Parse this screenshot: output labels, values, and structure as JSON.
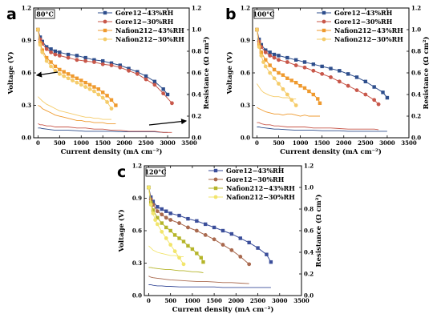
{
  "chart_data": [
    {
      "type": "line",
      "panel_letter": "a",
      "temperature_label": "80°C",
      "xlabel": "Current density (mA cm⁻²)",
      "ylabel": "Voltage (V)",
      "y2label": "Resistance (Ω cm²)",
      "xlim": [
        -100,
        3500
      ],
      "ylim": [
        0,
        1.2
      ],
      "y2lim": [
        0,
        1.2
      ],
      "x_ticks": [
        0,
        500,
        1000,
        1500,
        2000,
        2500,
        3000,
        3500
      ],
      "y_ticks": [
        0.0,
        0.3,
        0.6,
        0.9,
        1.2
      ],
      "y2_ticks": [
        0.0,
        0.2,
        0.4,
        0.6,
        0.8,
        1.0,
        1.2
      ],
      "legend_position": "top-right",
      "annotations": [
        "arrow pointing to left (voltage) axis",
        "arrow pointing to right (resistance) axis"
      ],
      "series": [
        {
          "name": "Gore12−43%RH",
          "color": "#2e4e8c",
          "marker": "square",
          "x": [
            0,
            50,
            100,
            200,
            300,
            400,
            500,
            700,
            900,
            1100,
            1300,
            1500,
            1700,
            1900,
            2100,
            2300,
            2500,
            2700,
            2900,
            3000
          ],
          "y": [
            1.0,
            0.93,
            0.89,
            0.84,
            0.82,
            0.8,
            0.79,
            0.77,
            0.76,
            0.74,
            0.72,
            0.71,
            0.69,
            0.67,
            0.64,
            0.61,
            0.57,
            0.52,
            0.45,
            0.4
          ],
          "resistance": [
            0.09,
            0.09,
            0.085,
            0.08,
            0.075,
            0.07,
            0.07,
            0.07,
            0.065,
            0.06,
            0.06,
            0.06,
            0.06,
            0.055,
            0.055,
            0.055,
            0.055,
            0.055,
            0.05,
            0.05
          ]
        },
        {
          "name": "Gore12−30%RH",
          "color": "#c8574a",
          "marker": "circle",
          "x": [
            0,
            50,
            100,
            200,
            300,
            400,
            500,
            700,
            900,
            1100,
            1300,
            1500,
            1700,
            1900,
            2100,
            2300,
            2500,
            2700,
            2900,
            3100
          ],
          "y": [
            1.0,
            0.91,
            0.87,
            0.82,
            0.79,
            0.77,
            0.76,
            0.74,
            0.72,
            0.71,
            0.7,
            0.68,
            0.67,
            0.65,
            0.62,
            0.59,
            0.54,
            0.49,
            0.41,
            0.32
          ],
          "resistance": [
            0.13,
            0.12,
            0.12,
            0.11,
            0.11,
            0.1,
            0.1,
            0.1,
            0.09,
            0.09,
            0.08,
            0.08,
            0.07,
            0.07,
            0.06,
            0.06,
            0.06,
            0.06,
            0.05,
            0.05
          ]
        },
        {
          "name": "Nafion212−43%RH",
          "color": "#ef9a2e",
          "marker": "square",
          "x": [
            0,
            50,
            100,
            200,
            300,
            400,
            500,
            600,
            700,
            800,
            900,
            1000,
            1100,
            1200,
            1300,
            1400,
            1500,
            1600,
            1700,
            1800
          ],
          "y": [
            1.0,
            0.88,
            0.81,
            0.74,
            0.7,
            0.66,
            0.63,
            0.61,
            0.59,
            0.57,
            0.55,
            0.53,
            0.51,
            0.49,
            0.47,
            0.45,
            0.42,
            0.39,
            0.35,
            0.3
          ],
          "resistance": [
            0.3,
            0.29,
            0.27,
            0.25,
            0.23,
            0.21,
            0.2,
            0.19,
            0.18,
            0.17,
            0.16,
            0.16,
            0.15,
            0.15,
            0.14,
            0.14,
            0.14,
            0.13,
            0.13,
            0.13
          ]
        },
        {
          "name": "Nafion212−30%RH",
          "color": "#f5cc6a",
          "marker": "circle",
          "x": [
            0,
            50,
            100,
            200,
            300,
            400,
            500,
            600,
            700,
            800,
            900,
            1000,
            1100,
            1200,
            1300,
            1400,
            1500,
            1600,
            1700
          ],
          "y": [
            1.0,
            0.86,
            0.79,
            0.71,
            0.66,
            0.62,
            0.59,
            0.57,
            0.55,
            0.53,
            0.51,
            0.49,
            0.47,
            0.45,
            0.43,
            0.4,
            0.37,
            0.33,
            0.27
          ],
          "resistance": [
            0.38,
            0.36,
            0.34,
            0.31,
            0.29,
            0.27,
            0.25,
            0.24,
            0.23,
            0.22,
            0.21,
            0.2,
            0.19,
            0.19,
            0.18,
            0.18,
            0.17,
            0.17,
            0.17
          ]
        }
      ]
    },
    {
      "type": "line",
      "panel_letter": "b",
      "temperature_label": "100°C",
      "xlabel": "Current density (mA cm⁻²)",
      "ylabel": "Voltage (V)",
      "y2label": "Resistance (Ω cm²)",
      "xlim": [
        -100,
        3500
      ],
      "ylim": [
        0,
        1.2
      ],
      "y2lim": [
        0,
        1.2
      ],
      "x_ticks": [
        0,
        500,
        1000,
        1500,
        2000,
        2500,
        3000,
        3500
      ],
      "y_ticks": [
        0.0,
        0.3,
        0.6,
        0.9,
        1.2
      ],
      "y2_ticks": [
        0.0,
        0.2,
        0.4,
        0.6,
        0.8,
        1.0,
        1.2
      ],
      "legend_position": "top-right",
      "series": [
        {
          "name": "Gore12−43%RH",
          "color": "#2e4e8c",
          "marker": "square",
          "x": [
            0,
            50,
            100,
            200,
            300,
            400,
            500,
            700,
            900,
            1100,
            1300,
            1500,
            1700,
            1900,
            2100,
            2300,
            2500,
            2700,
            2900,
            3000
          ],
          "y": [
            1.0,
            0.91,
            0.86,
            0.81,
            0.79,
            0.77,
            0.76,
            0.74,
            0.72,
            0.7,
            0.68,
            0.66,
            0.64,
            0.62,
            0.59,
            0.56,
            0.52,
            0.47,
            0.42,
            0.37
          ],
          "resistance": [
            0.1,
            0.1,
            0.095,
            0.09,
            0.085,
            0.08,
            0.08,
            0.075,
            0.07,
            0.07,
            0.07,
            0.065,
            0.065,
            0.065,
            0.06,
            0.06,
            0.06,
            0.06,
            0.06,
            0.06
          ]
        },
        {
          "name": "Gore12−30%RH",
          "color": "#c8574a",
          "marker": "circle",
          "x": [
            0,
            50,
            100,
            200,
            300,
            400,
            500,
            700,
            900,
            1100,
            1300,
            1500,
            1700,
            1900,
            2100,
            2300,
            2500,
            2700,
            2800
          ],
          "y": [
            1.0,
            0.89,
            0.84,
            0.79,
            0.76,
            0.74,
            0.72,
            0.7,
            0.67,
            0.65,
            0.62,
            0.59,
            0.56,
            0.52,
            0.48,
            0.44,
            0.4,
            0.35,
            0.31
          ],
          "resistance": [
            0.14,
            0.14,
            0.13,
            0.12,
            0.12,
            0.11,
            0.11,
            0.1,
            0.1,
            0.1,
            0.09,
            0.09,
            0.09,
            0.085,
            0.08,
            0.08,
            0.08,
            0.08,
            0.075
          ]
        },
        {
          "name": "Nafion212−43%RH",
          "color": "#ef9a2e",
          "marker": "square",
          "x": [
            0,
            50,
            100,
            200,
            300,
            400,
            500,
            600,
            700,
            800,
            900,
            1000,
            1100,
            1200,
            1300,
            1400,
            1450
          ],
          "y": [
            1.0,
            0.86,
            0.79,
            0.72,
            0.67,
            0.63,
            0.6,
            0.58,
            0.55,
            0.53,
            0.51,
            0.48,
            0.46,
            0.43,
            0.4,
            0.36,
            0.32
          ],
          "resistance": [
            0.28,
            0.27,
            0.26,
            0.24,
            0.23,
            0.22,
            0.22,
            0.21,
            0.22,
            0.22,
            0.21,
            0.2,
            0.21,
            0.2,
            0.2,
            0.2,
            0.2
          ]
        },
        {
          "name": "Nafion212−30%RH",
          "color": "#f5cc6a",
          "marker": "circle",
          "x": [
            0,
            50,
            100,
            150,
            200,
            300,
            400,
            500,
            600,
            700,
            800,
            900
          ],
          "y": [
            1.0,
            0.84,
            0.76,
            0.7,
            0.66,
            0.6,
            0.55,
            0.5,
            0.45,
            0.4,
            0.35,
            0.3
          ],
          "resistance": [
            0.5,
            0.47,
            0.44,
            0.42,
            0.41,
            0.39,
            0.38,
            0.38,
            0.37,
            0.37,
            0.36,
            0.36
          ]
        }
      ]
    },
    {
      "type": "line",
      "panel_letter": "c",
      "temperature_label": "120°C",
      "xlabel": "Current density (mA cm⁻²)",
      "ylabel": "Voltage (V)",
      "y2label": "Resistance (Ω cm²)",
      "xlim": [
        -100,
        3500
      ],
      "ylim": [
        0,
        1.2
      ],
      "y2lim": [
        0,
        1.2
      ],
      "x_ticks": [
        0,
        500,
        1000,
        1500,
        2000,
        2500,
        3000,
        3500
      ],
      "y_ticks": [
        0.0,
        0.3,
        0.6,
        0.9,
        1.2
      ],
      "y2_ticks": [
        0.0,
        0.2,
        0.4,
        0.6,
        0.8,
        1.0,
        1.2
      ],
      "legend_position": "top-right",
      "series": [
        {
          "name": "Gore12−43%RH",
          "color": "#3b4e9a",
          "marker": "square",
          "x": [
            0,
            50,
            100,
            200,
            300,
            400,
            500,
            700,
            900,
            1100,
            1300,
            1500,
            1700,
            1900,
            2100,
            2300,
            2500,
            2700,
            2800
          ],
          "y": [
            1.0,
            0.91,
            0.87,
            0.82,
            0.8,
            0.78,
            0.76,
            0.74,
            0.71,
            0.69,
            0.66,
            0.63,
            0.6,
            0.57,
            0.53,
            0.49,
            0.44,
            0.38,
            0.31
          ],
          "resistance": [
            0.1,
            0.1,
            0.095,
            0.09,
            0.09,
            0.085,
            0.085,
            0.08,
            0.08,
            0.08,
            0.08,
            0.08,
            0.075,
            0.075,
            0.075,
            0.075,
            0.075,
            0.075,
            0.075
          ]
        },
        {
          "name": "Gore12−30%RH",
          "color": "#a9694e",
          "marker": "circle",
          "x": [
            0,
            50,
            100,
            200,
            300,
            400,
            500,
            700,
            900,
            1100,
            1300,
            1500,
            1700,
            1900,
            2100,
            2300
          ],
          "y": [
            1.0,
            0.89,
            0.84,
            0.78,
            0.75,
            0.72,
            0.7,
            0.67,
            0.63,
            0.6,
            0.56,
            0.52,
            0.47,
            0.42,
            0.36,
            0.29
          ],
          "resistance": [
            0.18,
            0.17,
            0.165,
            0.16,
            0.155,
            0.15,
            0.145,
            0.14,
            0.135,
            0.13,
            0.13,
            0.125,
            0.12,
            0.12,
            0.115,
            0.11
          ]
        },
        {
          "name": "Nafion212−43%RH",
          "color": "#b5b52a",
          "marker": "square",
          "x": [
            0,
            50,
            100,
            200,
            300,
            400,
            500,
            600,
            700,
            800,
            900,
            1000,
            1100,
            1200,
            1250
          ],
          "y": [
            1.0,
            0.86,
            0.79,
            0.72,
            0.67,
            0.63,
            0.6,
            0.56,
            0.53,
            0.5,
            0.46,
            0.43,
            0.39,
            0.35,
            0.31
          ],
          "resistance": [
            0.26,
            0.26,
            0.255,
            0.25,
            0.245,
            0.24,
            0.24,
            0.235,
            0.23,
            0.23,
            0.225,
            0.22,
            0.22,
            0.215,
            0.21
          ]
        },
        {
          "name": "Nafion212−30%RH",
          "color": "#f2e56c",
          "marker": "circle",
          "x": [
            0,
            50,
            100,
            150,
            200,
            300,
            400,
            500,
            600,
            700,
            800
          ],
          "y": [
            1.0,
            0.84,
            0.76,
            0.7,
            0.66,
            0.59,
            0.53,
            0.47,
            0.41,
            0.35,
            0.29
          ],
          "resistance": [
            0.46,
            0.44,
            0.42,
            0.41,
            0.4,
            0.39,
            0.38,
            0.37,
            0.37,
            0.36,
            0.36
          ]
        }
      ]
    }
  ]
}
